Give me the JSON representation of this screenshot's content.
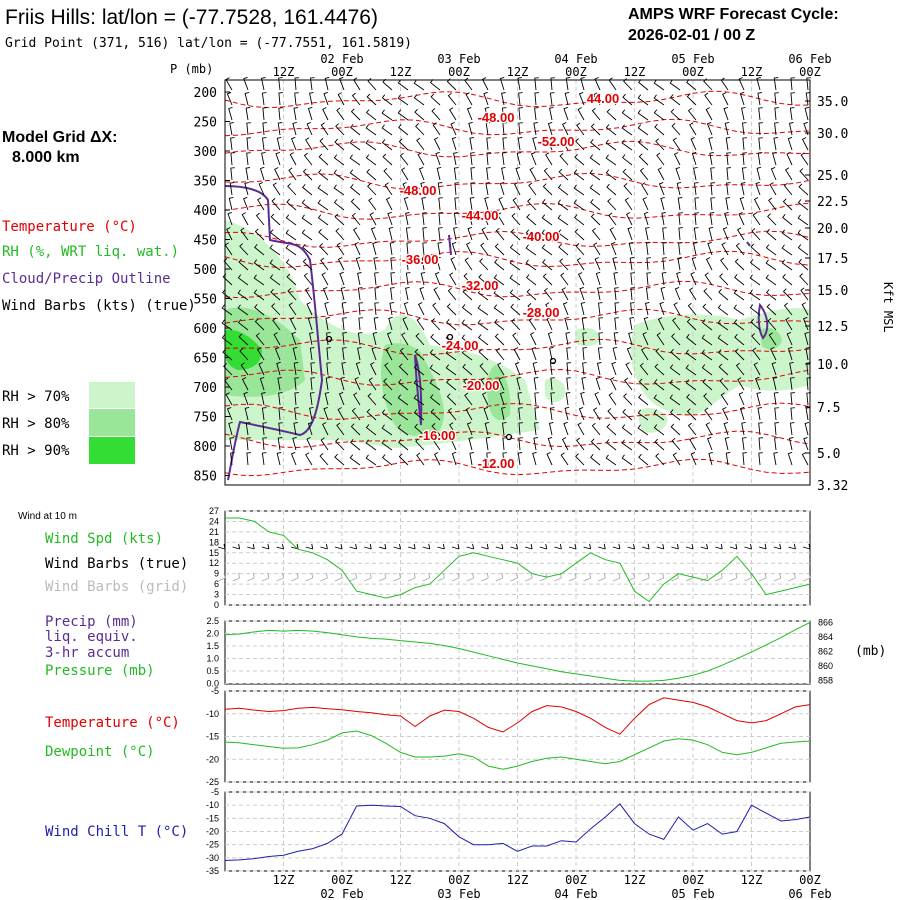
{
  "header": {
    "title": "Friis Hills:  lat/lon = (-77.7528, 161.4476)",
    "subtitle": "Grid Point (371, 516) lat/lon = (-77.7551, 161.5819)",
    "cycle_label": "AMPS WRF Forecast Cycle:",
    "cycle_value": "2026-02-01 / 00  Z"
  },
  "left_panel": {
    "model_grid_label": "Model Grid ΔX:",
    "model_grid_value": "8.000 km",
    "legend_temperature": "Temperature (°C)",
    "legend_rh": "RH (%, WRT liq. wat.)",
    "legend_cloud": "Cloud/Precip Outline",
    "legend_wind": "Wind Barbs (kts) (true)",
    "rh70": "RH > 70%",
    "rh80": "RH > 80%",
    "rh90": "RH > 90%"
  },
  "colors": {
    "temp": "#e00000",
    "rh70": "#ccf5cc",
    "rh80": "#99e699",
    "rh90": "#33dd33",
    "cloud": "#5a2d91",
    "green": "#22bb22",
    "grey": "#bbbbbb",
    "blue": "#2020b0"
  },
  "time_axis": {
    "hours_top": [
      "12Z",
      "00Z",
      "12Z",
      "00Z",
      "12Z",
      "00Z",
      "12Z",
      "00Z",
      "12Z",
      "00Z"
    ],
    "dates_top": [
      "02 Feb",
      "03 Feb",
      "04 Feb",
      "05 Feb",
      "06 Feb"
    ],
    "hours_bottom": [
      "12Z",
      "00Z",
      "12Z",
      "00Z",
      "12Z",
      "00Z",
      "12Z",
      "00Z",
      "12Z",
      "00Z"
    ],
    "dates_bottom": [
      "02 Feb",
      "03 Feb",
      "04 Feb",
      "05 Feb",
      "06 Feb"
    ]
  },
  "chart_data": [
    {
      "type": "contour",
      "name": "cross_section",
      "p_label": "P (mb)",
      "y_ticks_p": [
        "200",
        "250",
        "300",
        "350",
        "400",
        "450",
        "500",
        "550",
        "600",
        "650",
        "700",
        "750",
        "800",
        "850"
      ],
      "y_ticks_kft": [
        "35.0",
        "30.0",
        "25.0",
        "22.5",
        "20.0",
        "17.5",
        "15.0",
        "12.5",
        "10.0",
        "7.5",
        "5.0",
        "3.32"
      ],
      "right_axis_label": "Kft MSL",
      "temp_labels": [
        "44.00",
        "-48.00",
        "-52.00",
        "-48.00",
        "-44.00",
        "-40.00",
        "-36.00",
        "-32.00",
        "-28.00",
        "-24.00",
        "-20.00",
        "-16.00",
        "-12.00"
      ]
    },
    {
      "type": "line",
      "name": "wind",
      "title": "Wind at 10 m",
      "legend": [
        "Wind Spd (kts)",
        "Wind Barbs (true)",
        "Wind Barbs (grid)"
      ],
      "y_ticks": [
        "27",
        "24",
        "21",
        "18",
        "15",
        "12",
        "9",
        "6",
        "3",
        "0"
      ],
      "ylim": [
        0,
        27
      ],
      "x_hours": [
        0,
        3,
        6,
        9,
        12,
        15,
        18,
        21,
        24,
        27,
        30,
        33,
        36,
        39,
        42,
        45,
        48,
        51,
        54,
        57,
        60,
        63,
        66,
        69,
        72,
        75,
        78,
        81,
        84,
        87,
        90,
        93,
        96,
        99,
        102,
        105,
        108,
        111,
        114,
        117,
        120
      ],
      "series": [
        {
          "name": "Wind Spd (kts)",
          "values": [
            25,
            25,
            24,
            21,
            20,
            16,
            15,
            13,
            10,
            4,
            3,
            2,
            3,
            5,
            6,
            10,
            14,
            15,
            14,
            13,
            12,
            9,
            8,
            9,
            12,
            15,
            13,
            12,
            4,
            1,
            6,
            9,
            8,
            7,
            10,
            14,
            9,
            3,
            4,
            5,
            6
          ]
        }
      ]
    },
    {
      "type": "line",
      "name": "precip_pressure",
      "legend": [
        "Precip (mm)",
        "liq. equiv.",
        "3-hr accum",
        "Pressure (mb)"
      ],
      "y_ticks_left": [
        "2.5",
        "2.0",
        "1.5",
        "1.0",
        "0.5",
        "0.0"
      ],
      "y_ticks_right": [
        "866",
        "864",
        "862",
        "860",
        "858"
      ],
      "right_axis_label": "(mb)",
      "ylim": [
        857.5,
        866.2
      ],
      "series": [
        {
          "name": "Pressure (mb)",
          "values": [
            864.3,
            864.4,
            864.7,
            864.9,
            864.8,
            864.9,
            864.8,
            864.6,
            864.3,
            864.0,
            863.8,
            863.7,
            863.5,
            863.3,
            863.1,
            862.8,
            862.4,
            861.9,
            861.4,
            860.9,
            860.4,
            860.0,
            859.6,
            859.2,
            858.9,
            858.6,
            858.3,
            858.0,
            857.9,
            857.9,
            858.0,
            858.3,
            858.7,
            859.3,
            860.1,
            861.0,
            861.9,
            862.9,
            863.9,
            865.0,
            866.0
          ]
        }
      ]
    },
    {
      "type": "line",
      "name": "temperature",
      "legend": [
        "Temperature (°C)",
        "Dewpoint (°C)"
      ],
      "y_ticks": [
        "-5",
        "-10",
        "-15",
        "-20",
        "-25"
      ],
      "ylim": [
        -25,
        -5
      ],
      "series": [
        {
          "name": "Temperature (°C)",
          "values": [
            -9,
            -8.8,
            -9.2,
            -9.5,
            -9.3,
            -8.8,
            -8.6,
            -8.9,
            -9.1,
            -9.5,
            -9.8,
            -10.2,
            -10.5,
            -12.8,
            -10.5,
            -9.2,
            -9.5,
            -11,
            -13,
            -14,
            -12,
            -9.5,
            -8.2,
            -8.5,
            -9.5,
            -11,
            -13,
            -14.5,
            -11,
            -8,
            -6.5,
            -7,
            -7.5,
            -8.5,
            -10,
            -11.5,
            -12,
            -11.5,
            -10,
            -8.5,
            -8
          ]
        },
        {
          "name": "Dewpoint (°C)",
          "values": [
            -16.2,
            -16.4,
            -16.8,
            -17.2,
            -17.6,
            -17.5,
            -16.8,
            -15.8,
            -14.2,
            -13.8,
            -14.8,
            -16.5,
            -18.5,
            -19.5,
            -19.5,
            -19.3,
            -18.8,
            -19.5,
            -21.5,
            -22.2,
            -21.5,
            -20.5,
            -19.8,
            -19.5,
            -20,
            -20.5,
            -21,
            -20.5,
            -19,
            -17.5,
            -16,
            -15.5,
            -15.8,
            -16.8,
            -18.5,
            -19,
            -18.5,
            -17.5,
            -16.5,
            -16.2,
            -16
          ]
        }
      ]
    },
    {
      "type": "line",
      "name": "wind_chill",
      "legend": [
        "Wind Chill T (°C)"
      ],
      "y_ticks": [
        "-5",
        "-10",
        "-15",
        "-20",
        "-25",
        "-30",
        "-35"
      ],
      "ylim": [
        -35,
        -5
      ],
      "series": [
        {
          "name": "Wind Chill T (°C)",
          "values": [
            -31,
            -30.8,
            -30.3,
            -29.5,
            -29,
            -27.5,
            -26.5,
            -24.5,
            -21,
            -10.3,
            -10,
            -10.3,
            -10.5,
            -14,
            -15,
            -17,
            -22,
            -25,
            -25,
            -24.5,
            -27.5,
            -25.5,
            -25.5,
            -23.5,
            -24,
            -19,
            -14.5,
            -9.5,
            -17,
            -21,
            -23,
            -14.5,
            -19.5,
            -17,
            -21,
            -20,
            -10,
            -13,
            -16,
            -15.5,
            -14.5
          ]
        }
      ]
    }
  ]
}
